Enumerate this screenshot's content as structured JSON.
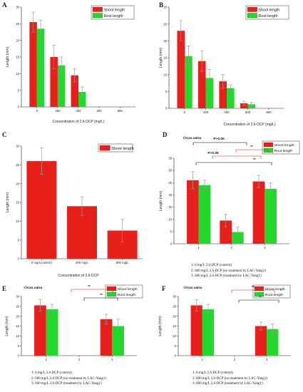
{
  "colors": {
    "shoot": "#e8201c",
    "root": "#23d82c",
    "errorbar": "#999999",
    "sig_red": "#d62020",
    "sig_black": "#000000"
  },
  "panels": [
    {
      "label": "A",
      "chart_data": {
        "type": "bar",
        "xlabel": "Concentration of 2,6-DCP (mg/L)",
        "ylabel": "Length (mm)",
        "ylim": [
          0,
          30
        ],
        "yticks": [
          0,
          5,
          10,
          15,
          20,
          25,
          30
        ],
        "categories": [
          "0",
          "200",
          "400",
          "600",
          "800"
        ],
        "legend": "top-right",
        "series": [
          {
            "name": "Shoot length",
            "values": [
              25.5,
              15,
              9.5,
              0,
              0
            ],
            "errors": [
              3,
              3.5,
              2,
              0,
              0
            ]
          },
          {
            "name": "Root length",
            "values": [
              23.5,
              12.5,
              4.5,
              0,
              0
            ],
            "errors": [
              2.5,
              2.5,
              1.5,
              0,
              0
            ]
          }
        ]
      }
    },
    {
      "label": "B",
      "chart_data": {
        "type": "bar",
        "xlabel": "Concentration of 2,6-DCP (mg/L)",
        "ylabel": "Length (mm)",
        "ylim": [
          0,
          30
        ],
        "yticks": [
          0,
          5,
          10,
          15,
          20,
          25,
          30
        ],
        "categories": [
          "0",
          "200",
          "400",
          "600",
          "800"
        ],
        "legend": "top-right",
        "series": [
          {
            "name": "Shoot length",
            "values": [
              23,
              14,
              8,
              1.5,
              0
            ],
            "errors": [
              3,
              3,
              2,
              0.6,
              0
            ]
          },
          {
            "name": "Root length",
            "values": [
              15.5,
              9,
              6,
              1.2,
              0
            ],
            "errors": [
              3,
              2.5,
              1,
              0.5,
              0
            ]
          }
        ]
      }
    },
    {
      "label": "C",
      "chart_data": {
        "type": "bar",
        "xlabel": "Concentration of 2,6-DCP",
        "ylabel": "Length (mm)",
        "ylim": [
          0,
          30
        ],
        "yticks": [
          0,
          5,
          10,
          15,
          20,
          25,
          30
        ],
        "categories": [
          "0 mg/L(control)",
          "400 mg/L",
          "800 mg/L"
        ],
        "legend": "top-right",
        "series": [
          {
            "name": "Shoot length",
            "values": [
              26,
              14,
              7.5
            ],
            "errors": [
              3.5,
              2.5,
              3
            ]
          }
        ]
      }
    },
    {
      "label": "D",
      "species": "Oryza sativa",
      "chart_data": {
        "type": "bar",
        "xlabel": "",
        "ylabel": "Length (mm)",
        "ylim": [
          0,
          35
        ],
        "yticks": [
          0,
          5,
          10,
          15,
          20,
          25,
          30,
          35
        ],
        "categories": [
          "1",
          "2",
          "3"
        ],
        "legend": "top-right",
        "series": [
          {
            "name": "Shoot length",
            "values": [
              26,
              9.5,
              25.5
            ],
            "errors": [
              3.5,
              2.5,
              2.5
            ]
          },
          {
            "name": "Root length",
            "values": [
              24,
              4.8,
              22.5
            ],
            "errors": [
              2,
              2,
              2.5
            ]
          }
        ],
        "annotations": [
          "P>0.05",
          "P>0.05",
          "**",
          "**"
        ]
      },
      "notes": [
        "1:  0 mg/L 2,6-DCP (control)",
        "2:  400 mg/L 2,6-DCP (no treatment by LAC-Yang1)",
        "3:  400 mg/L 2,6-DCP (treatment by LAC-Yang1)"
      ]
    },
    {
      "label": "E",
      "species": "Oryza sativa",
      "chart_data": {
        "type": "bar",
        "xlabel": "",
        "ylabel": "Length (mm)",
        "ylim": [
          0,
          30
        ],
        "yticks": [
          0,
          5,
          10,
          15,
          20,
          25,
          30
        ],
        "categories": [
          "1",
          "2",
          "3"
        ],
        "legend": "top-right",
        "series": [
          {
            "name": "Shoot length",
            "values": [
              25.5,
              0,
              18.5
            ],
            "errors": [
              3,
              0,
              2.5
            ]
          },
          {
            "name": "Root length",
            "values": [
              23.5,
              0,
              15
            ],
            "errors": [
              2.5,
              0,
              3.5
            ]
          }
        ],
        "annotations": [
          "**",
          "**"
        ]
      },
      "notes": [
        "1:  0 mg/L 2,6-DCP (control)",
        "2:  600 mg/L 2,6-DCP (no treatment by LAC-Yang1)",
        "3:  600 mg/L 2,6-DCP (treatment by LAC-Yang1)"
      ]
    },
    {
      "label": "F",
      "species": "Oryza sativa",
      "chart_data": {
        "type": "bar",
        "xlabel": "",
        "ylabel": "Length (mm)",
        "ylim": [
          0,
          30
        ],
        "yticks": [
          0,
          5,
          10,
          15,
          20,
          25,
          30
        ],
        "categories": [
          "1",
          "2",
          "3"
        ],
        "legend": "top-right",
        "series": [
          {
            "name": "Shoot length",
            "values": [
              25.5,
              0,
              15
            ],
            "errors": [
              3,
              0,
              2
            ]
          },
          {
            "name": "Root length",
            "values": [
              23.5,
              0,
              13.5
            ],
            "errors": [
              2.5,
              0,
              2.5
            ]
          }
        ],
        "annotations": [
          "**",
          "**"
        ]
      },
      "notes": [
        "1:  0 mg/L 2,6-DCP (control)",
        "2:  800 mg/L 2,6-DCP (no treatment by LAC-Yang1)",
        "3:  800 mg/L 2,6-DCP (treatment by LAC-Yang1)"
      ]
    }
  ]
}
